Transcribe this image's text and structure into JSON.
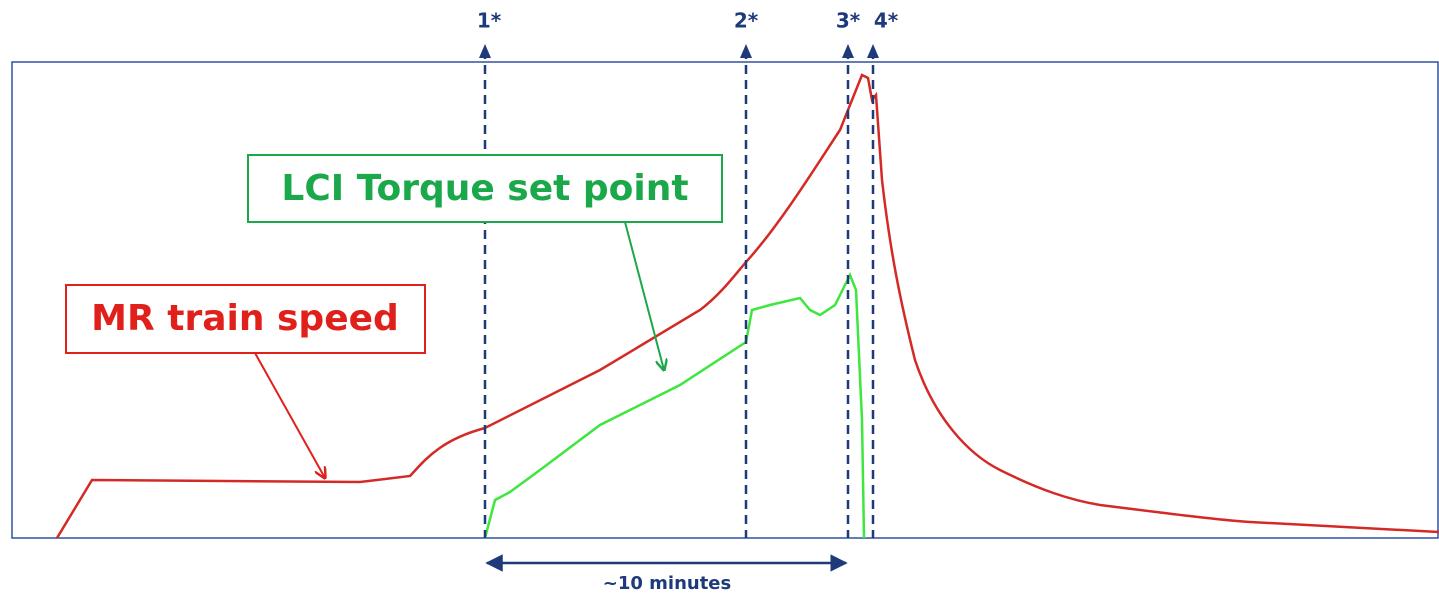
{
  "labels": {
    "speed": "MR train speed",
    "torque": "LCI Torque set point"
  },
  "markers": [
    "1*",
    "2*",
    "3*",
    "4*"
  ],
  "duration": "~10 minutes"
}
